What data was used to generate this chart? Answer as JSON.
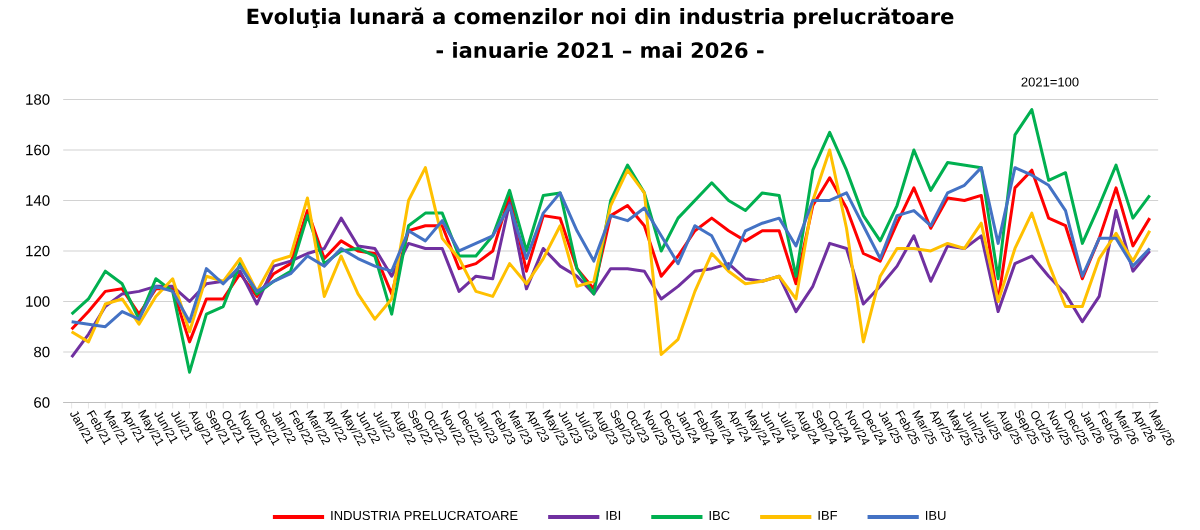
{
  "chart_data": {
    "type": "line",
    "title": "Evoluţia lunară a comenzilor noi din industria prelucrătoare",
    "subtitle": "- ianuarie 2021 – mai 2026 -",
    "annotations": [
      "2021=100"
    ],
    "categories": [
      "Jan/21",
      "Feb/21",
      "Mar/21",
      "Apr/21",
      "May/21",
      "Jun/21",
      "Jul/21",
      "Aug/21",
      "Sep/21",
      "Oct/21",
      "Nov/21",
      "Dec/21",
      "Jan/22",
      "Feb/22",
      "Mar/22",
      "Apr/22",
      "May/22",
      "Jun/22",
      "Jul/22",
      "Aug/22",
      "Sep/22",
      "Oct/22",
      "Nov/22",
      "Dec/22",
      "Jan/23",
      "Feb/23",
      "Mar/23",
      "Apr/23",
      "May/23",
      "Jun/23",
      "Jul/23",
      "Aug/23",
      "Sep/23",
      "Oct/23",
      "Nov/23",
      "Dec/23",
      "Jan/24",
      "Feb/24",
      "Mar/24",
      "Apr/24",
      "May/24",
      "Jun/24",
      "Jul/24",
      "Aug/24",
      "Sep/24",
      "Oct/24",
      "Nov/24",
      "Dec/24",
      "Jan/25",
      "Feb/25",
      "Mar/25",
      "Apr/25",
      "May/25",
      "Jun/25",
      "Jul/25",
      "Aug/25",
      "Sep/25",
      "Oct/25",
      "Nov/25",
      "Dec/25",
      "Jan/26",
      "Feb/26",
      "Mar/26",
      "Apr/26",
      "May/26"
    ],
    "series": [
      {
        "name": "INDUSTRIA PRELUCRATOARE",
        "color": "#ff0000",
        "values": [
          89,
          96,
          104,
          105,
          95,
          105,
          105,
          84,
          101,
          101,
          111,
          102,
          111,
          115,
          136,
          117,
          124,
          120,
          119,
          103,
          128,
          130,
          130,
          113,
          115,
          120,
          142,
          112,
          134,
          133,
          113,
          105,
          134,
          138,
          130,
          110,
          118,
          128,
          133,
          128,
          124,
          128,
          128,
          107,
          138,
          149,
          137,
          119,
          116,
          131,
          145,
          129,
          141,
          140,
          142,
          100,
          145,
          152,
          133,
          130,
          109,
          125,
          145,
          122,
          133
        ]
      },
      {
        "name": "IBI",
        "color": "#7030a0",
        "values": [
          78,
          87,
          98,
          103,
          104,
          106,
          106,
          100,
          107,
          108,
          112,
          99,
          114,
          116,
          119,
          121,
          133,
          122,
          121,
          110,
          123,
          121,
          121,
          104,
          110,
          109,
          139,
          105,
          121,
          114,
          110,
          103,
          113,
          113,
          112,
          101,
          106,
          112,
          113,
          115,
          109,
          108,
          110,
          96,
          106,
          123,
          121,
          99,
          106,
          114,
          126,
          108,
          122,
          121,
          126,
          96,
          115,
          118,
          110,
          103,
          92,
          102,
          136,
          112,
          120
        ]
      },
      {
        "name": "IBC",
        "color": "#00b050",
        "values": [
          95,
          101,
          112,
          107,
          93,
          109,
          104,
          72,
          95,
          98,
          115,
          103,
          108,
          112,
          134,
          115,
          120,
          121,
          118,
          95,
          130,
          135,
          135,
          118,
          118,
          126,
          144,
          120,
          142,
          143,
          113,
          103,
          140,
          154,
          143,
          120,
          133,
          140,
          147,
          140,
          136,
          143,
          142,
          110,
          152,
          167,
          152,
          134,
          124,
          138,
          160,
          144,
          155,
          154,
          153,
          109,
          166,
          176,
          148,
          151,
          123,
          138,
          154,
          133,
          142
        ]
      },
      {
        "name": "IBF",
        "color": "#ffc000",
        "values": [
          88,
          84,
          99,
          101,
          91,
          102,
          109,
          88,
          110,
          108,
          117,
          104,
          116,
          118,
          141,
          102,
          118,
          103,
          93,
          101,
          140,
          153,
          125,
          117,
          104,
          102,
          115,
          107,
          117,
          130,
          106,
          108,
          138,
          152,
          143,
          79,
          85,
          104,
          119,
          112,
          107,
          108,
          110,
          101,
          140,
          160,
          129,
          84,
          110,
          121,
          121,
          120,
          123,
          121,
          131,
          100,
          121,
          135,
          115,
          98,
          98,
          117,
          127,
          116,
          128
        ]
      },
      {
        "name": "IBU",
        "color": "#4472c4",
        "values": [
          92,
          91,
          90,
          96,
          93,
          106,
          104,
          92,
          113,
          107,
          114,
          104,
          108,
          111,
          118,
          114,
          121,
          117,
          114,
          112,
          128,
          124,
          132,
          120,
          123,
          126,
          138,
          117,
          135,
          143,
          128,
          116,
          134,
          132,
          137,
          126,
          115,
          130,
          126,
          113,
          128,
          131,
          133,
          122,
          140,
          140,
          143,
          130,
          117,
          134,
          136,
          130,
          143,
          146,
          153,
          123,
          153,
          150,
          146,
          136,
          110,
          125,
          125,
          114,
          121
        ]
      }
    ],
    "ylim": [
      60,
      180
    ],
    "yticks": [
      60,
      80,
      100,
      120,
      140,
      160,
      180
    ],
    "grid": "y",
    "legend": "bottom",
    "marker": "none",
    "line_style": "solid"
  }
}
